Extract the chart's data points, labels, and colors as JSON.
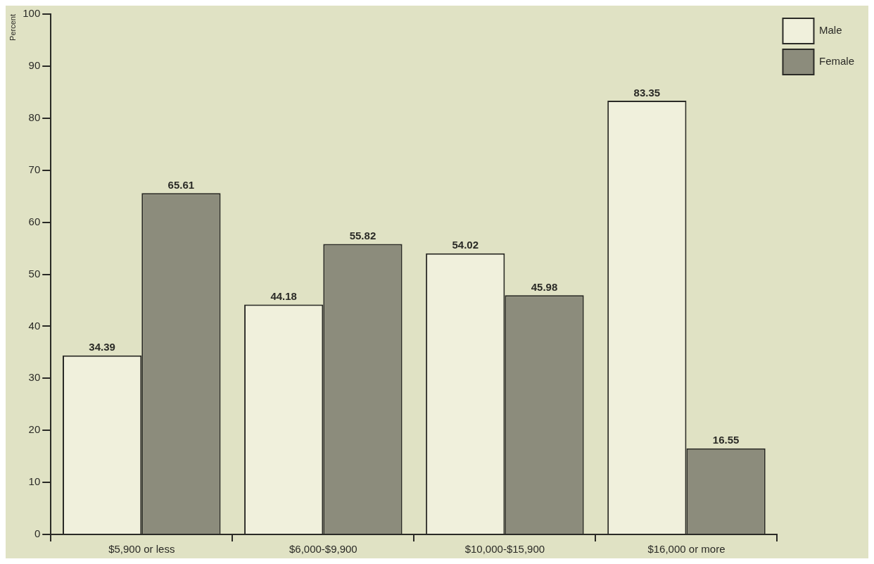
{
  "chart_data": {
    "type": "bar",
    "ylabel": "Percent",
    "categories": [
      "$5,900 or less",
      "$6,000-$9,900",
      "$10,000-$15,900",
      "$16,000 or more"
    ],
    "series": [
      {
        "name": "Male",
        "color": "#f0f0dc",
        "values": [
          34.39,
          44.18,
          54.02,
          83.35
        ]
      },
      {
        "name": "Female",
        "color": "#8c8c7c",
        "values": [
          65.61,
          55.82,
          45.98,
          16.55
        ]
      }
    ],
    "ylim": [
      0,
      100
    ],
    "yticks": [
      0,
      10,
      20,
      30,
      40,
      50,
      60,
      70,
      80,
      90,
      100
    ],
    "data_labels": true,
    "legend": "top right",
    "grid": false
  }
}
